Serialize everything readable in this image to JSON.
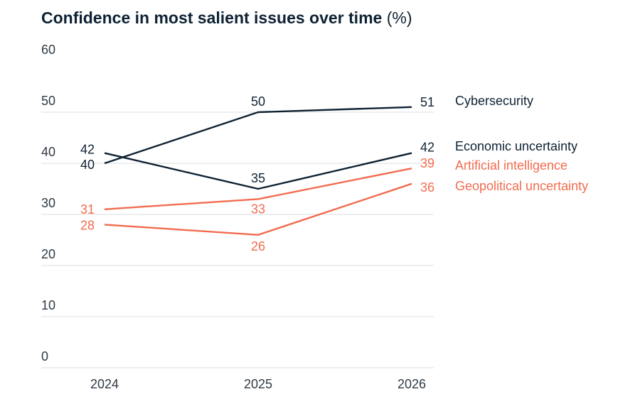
{
  "chart_data": {
    "type": "line",
    "title": "Confidence in most salient issues over time",
    "title_unit": "(%)",
    "x": [
      "2024",
      "2025",
      "2026"
    ],
    "ylim": [
      0,
      60
    ],
    "yticks": [
      "0",
      "10",
      "20",
      "30",
      "40",
      "50",
      "60"
    ],
    "grid": true,
    "legend": "right-end labels",
    "series": [
      {
        "name": "Cybersecurity",
        "values": [
          40,
          50,
          51
        ],
        "labels": [
          "40",
          "50",
          "51"
        ],
        "color": "#0e2233"
      },
      {
        "name": "Economic uncertainty",
        "values": [
          42,
          35,
          42
        ],
        "labels": [
          "42",
          "35",
          "42"
        ],
        "color": "#0e2233"
      },
      {
        "name": "Artificial intelligence",
        "values": [
          31,
          33,
          39
        ],
        "labels": [
          "31",
          "33",
          "39"
        ],
        "color": "#f26c4f"
      },
      {
        "name": "Geopolitical uncertainty",
        "values": [
          28,
          26,
          36
        ],
        "labels": [
          "28",
          "26",
          "36"
        ],
        "color": "#f26c4f"
      }
    ]
  }
}
